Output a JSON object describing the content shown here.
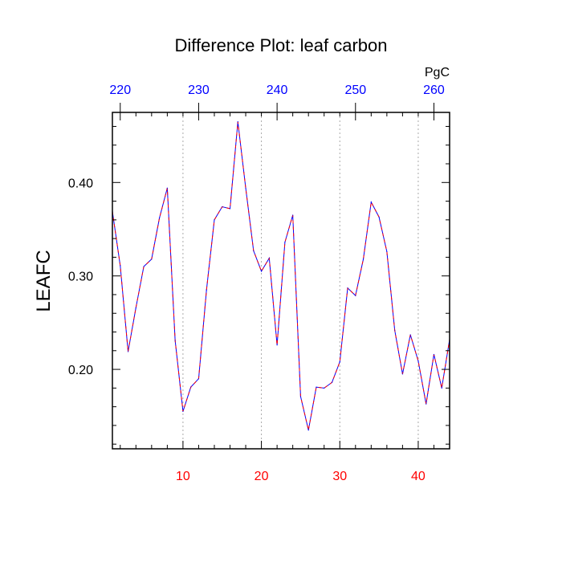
{
  "chart_data": {
    "type": "line",
    "title": "Difference Plot: leaf carbon",
    "ylabel": "LEAFC",
    "top_axis_unit": "PgC",
    "xlim": [
      1,
      44
    ],
    "ylim": [
      0.115,
      0.475
    ],
    "x_ticks": [
      10,
      20,
      30,
      40
    ],
    "x_tick_labels": [
      "10",
      "20",
      "30",
      "40"
    ],
    "top_ticks": [
      220,
      230,
      240,
      250,
      260
    ],
    "top_tick_labels": [
      "220",
      "230",
      "240",
      "250",
      "260"
    ],
    "top_axis_range": [
      219.0,
      262.0
    ],
    "y_ticks": [
      0.2,
      0.3,
      0.4
    ],
    "y_tick_labels": [
      "0.20",
      "0.30",
      "0.40"
    ],
    "grid": "vertical-dotted",
    "colors": {
      "bottom_ticks": "#ff0000",
      "top_ticks": "#0000ff",
      "series_solid": "#0000ff",
      "series_dashed": "#ff0000",
      "axes": "#000000",
      "grid": "#aaaaaa"
    },
    "series": [
      {
        "x": [
          1,
          2,
          3,
          4,
          5,
          6,
          7,
          8,
          9,
          10,
          11,
          12,
          13,
          14,
          15,
          16,
          17,
          18,
          19,
          20,
          21,
          22,
          23,
          24,
          25,
          26,
          27,
          28,
          29,
          30,
          31,
          32,
          33,
          34,
          35,
          36,
          37,
          38,
          39,
          40,
          41,
          42,
          43,
          44
        ],
        "values": [
          0.369,
          0.311,
          0.219,
          0.266,
          0.31,
          0.318,
          0.362,
          0.394,
          0.231,
          0.155,
          0.181,
          0.19,
          0.285,
          0.36,
          0.374,
          0.372,
          0.465,
          0.394,
          0.327,
          0.305,
          0.319,
          0.226,
          0.336,
          0.365,
          0.171,
          0.135,
          0.181,
          0.18,
          0.186,
          0.208,
          0.287,
          0.279,
          0.318,
          0.379,
          0.363,
          0.326,
          0.242,
          0.195,
          0.237,
          0.209,
          0.163,
          0.216,
          0.18,
          0.232
        ]
      }
    ]
  }
}
